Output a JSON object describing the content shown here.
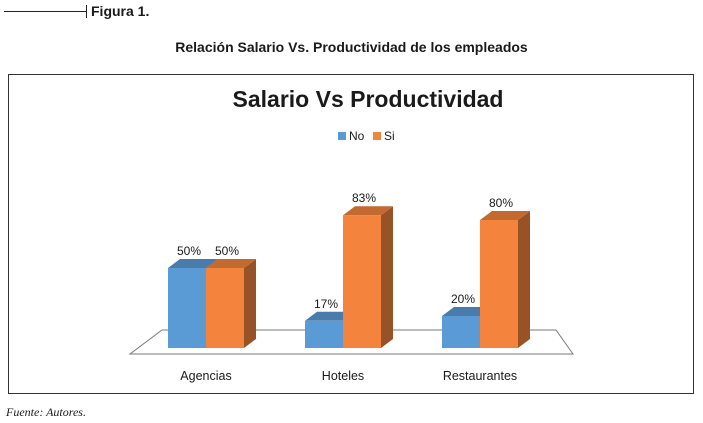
{
  "figure_label": "Figura 1.",
  "subtitle": "Relación Salario Vs. Productividad de los empleados",
  "source": "Fuente: Autores.",
  "chart_data": {
    "type": "bar",
    "title": "Salario Vs Productividad",
    "categories": [
      "Agencias",
      "Hoteles",
      "Restaurantes"
    ],
    "series": [
      {
        "name": "No",
        "values": [
          50,
          17,
          20
        ],
        "labels": [
          "50%",
          "17%",
          "20%"
        ],
        "color": "#5b9bd5"
      },
      {
        "name": "Si",
        "values": [
          50,
          83,
          80
        ],
        "labels": [
          "50%",
          "83%",
          "80%"
        ],
        "color": "#f4843d"
      }
    ],
    "ylim": [
      0,
      100
    ],
    "grid": false,
    "legend": "top",
    "three_d": true
  }
}
